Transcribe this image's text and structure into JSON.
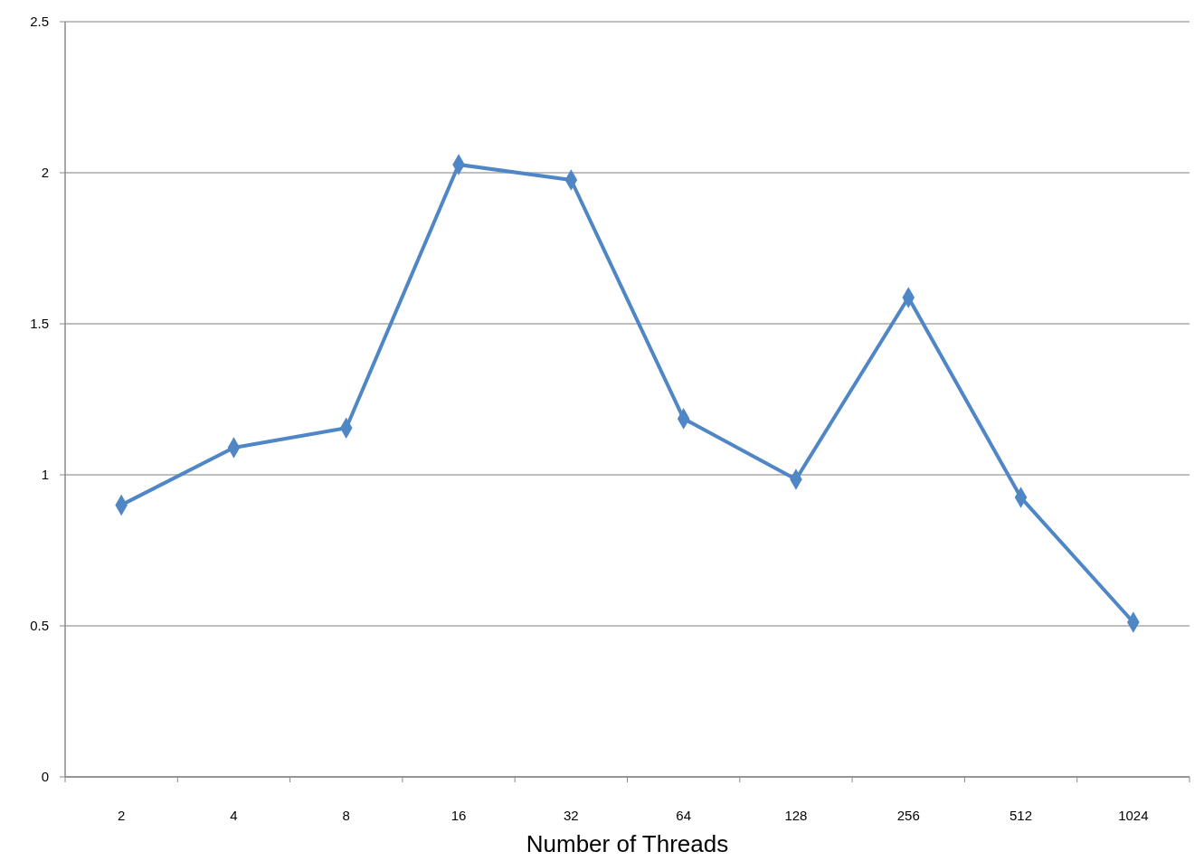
{
  "chart_data": {
    "type": "line",
    "xlabel": "Number of Threads",
    "categories": [
      "2",
      "4",
      "8",
      "16",
      "32",
      "64",
      "128",
      "256",
      "512",
      "1024"
    ],
    "series": [
      {
        "color": "#4f86c6",
        "values": [
          0.9,
          1.09,
          1.155,
          2.027,
          1.976,
          1.186,
          0.985,
          1.587,
          0.925,
          0.512
        ]
      }
    ],
    "ylim": [
      0,
      2.5
    ],
    "yticks": [
      0,
      0.5,
      1,
      1.5,
      2,
      2.5
    ],
    "grid": "y",
    "marker": "diamond",
    "line_style": "solid"
  }
}
